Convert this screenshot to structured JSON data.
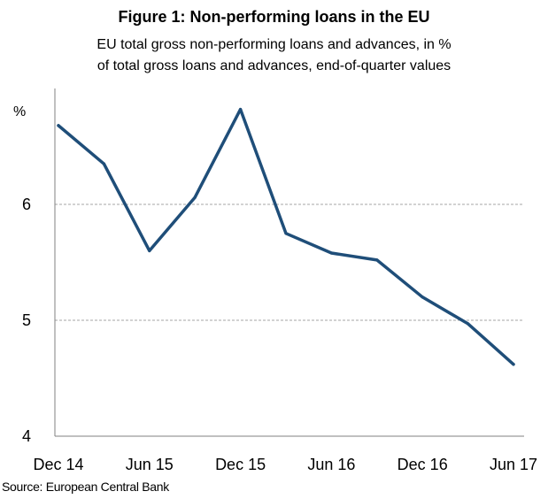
{
  "chart_data": {
    "type": "line",
    "title": "Figure 1:  Non-performing loans in the EU",
    "subtitle_lines": [
      "EU total gross non-performing  loans and advances,  in %",
      "of total gross loans and advances,  end-of-quarter  values"
    ],
    "ylabel": "%",
    "xlabel": "",
    "x": [
      "Dec 14",
      "Mar 15",
      "Jun 15",
      "Sep 15",
      "Dec 15",
      "Mar 16",
      "Jun 16",
      "Sep 16",
      "Dec 16",
      "Mar 17",
      "Jun 17"
    ],
    "x_tick_labels": [
      "Dec 14",
      "Jun 15",
      "Dec 15",
      "Jun 16",
      "Dec 16",
      "Jun 17"
    ],
    "series": [
      {
        "values": [
          6.68,
          6.35,
          5.6,
          6.06,
          6.82,
          5.75,
          5.58,
          5.52,
          5.2,
          4.97,
          4.62
        ]
      }
    ],
    "ylim": [
      4,
      7
    ],
    "y_ticks": [
      4,
      5,
      6
    ],
    "grid": "horizontal dashed",
    "line_color": "#1f4e79",
    "grid_color": "#a6a6a6",
    "axis_color": "#808080",
    "source": "Source: European Central Bank"
  }
}
